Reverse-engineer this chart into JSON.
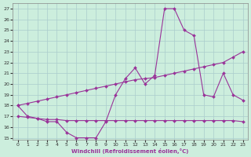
{
  "bg_color": "#cceedd",
  "grid_color": "#aacccc",
  "line_color": "#993399",
  "xlabel": "Windchill (Refroidissement éolien,°C)",
  "xlim": [
    -0.5,
    23.5
  ],
  "ylim": [
    14.8,
    27.5
  ],
  "yticks": [
    15,
    16,
    17,
    18,
    19,
    20,
    21,
    22,
    23,
    24,
    25,
    26,
    27
  ],
  "xticks": [
    0,
    1,
    2,
    3,
    4,
    5,
    6,
    7,
    8,
    9,
    10,
    11,
    12,
    13,
    14,
    15,
    16,
    17,
    18,
    19,
    20,
    21,
    22,
    23
  ],
  "curve1_x": [
    0,
    1,
    2,
    3,
    4,
    5,
    6,
    7,
    8,
    9,
    10,
    11,
    12,
    13,
    14,
    15,
    16,
    17,
    18,
    19,
    20,
    21,
    22,
    23
  ],
  "curve1_y": [
    18,
    17,
    16.8,
    16.5,
    16.5,
    15.5,
    15,
    15,
    15,
    16.5,
    19,
    20.5,
    21.5,
    20,
    20.8,
    27,
    27,
    25,
    24.5,
    19,
    18.8,
    21,
    19,
    18.5
  ],
  "curve2_x": [
    0,
    1,
    2,
    3,
    4,
    5,
    6,
    7,
    8,
    9,
    10,
    11,
    12,
    13,
    14,
    15,
    16,
    17,
    18,
    19,
    20,
    21,
    22,
    23
  ],
  "curve2_y": [
    18,
    18.2,
    18.4,
    18.6,
    18.8,
    19,
    19.2,
    19.4,
    19.6,
    19.8,
    20,
    20.2,
    20.4,
    20.5,
    20.6,
    20.8,
    21.0,
    21.2,
    21.4,
    21.6,
    21.8,
    22,
    22.5,
    23
  ],
  "curve3_x": [
    0,
    1,
    2,
    3,
    4,
    5,
    6,
    7,
    8,
    9,
    10,
    11,
    12,
    13,
    14,
    15,
    16,
    17,
    18,
    19,
    20,
    21,
    22,
    23
  ],
  "curve3_y": [
    17,
    16.9,
    16.8,
    16.7,
    16.7,
    16.6,
    16.6,
    16.6,
    16.6,
    16.6,
    16.6,
    16.6,
    16.6,
    16.6,
    16.6,
    16.6,
    16.6,
    16.6,
    16.6,
    16.6,
    16.6,
    16.6,
    16.6,
    16.5
  ]
}
